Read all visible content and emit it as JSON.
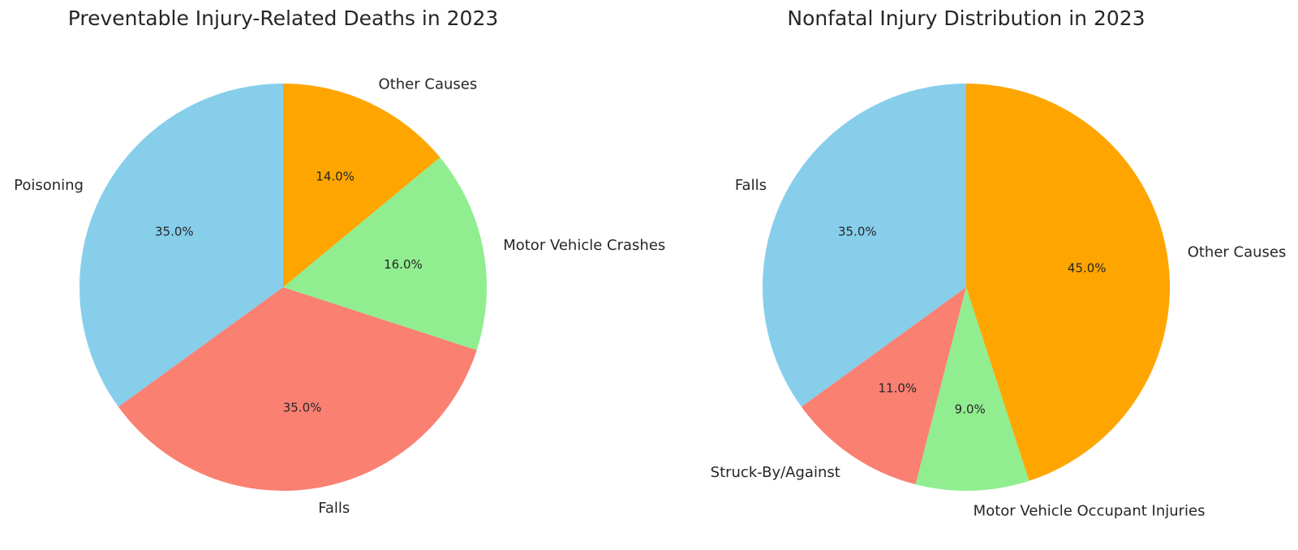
{
  "chart_data": [
    {
      "type": "pie",
      "title": "Preventable Injury-Related Deaths in 2023",
      "start_angle_deg": 90,
      "direction": "counterclockwise",
      "slices": [
        {
          "label": "Poisoning",
          "value": 35.0,
          "display": "35.0%",
          "color": "#87CEEB"
        },
        {
          "label": "Falls",
          "value": 35.0,
          "display": "35.0%",
          "color": "#FA8072"
        },
        {
          "label": "Motor Vehicle Crashes",
          "value": 16.0,
          "display": "16.0%",
          "color": "#90EE90"
        },
        {
          "label": "Other Causes",
          "value": 14.0,
          "display": "14.0%",
          "color": "#FFA500"
        }
      ]
    },
    {
      "type": "pie",
      "title": "Nonfatal Injury Distribution in 2023",
      "start_angle_deg": 90,
      "direction": "counterclockwise",
      "slices": [
        {
          "label": "Falls",
          "value": 35.0,
          "display": "35.0%",
          "color": "#87CEEB"
        },
        {
          "label": "Struck-By/Against",
          "value": 11.0,
          "display": "11.0%",
          "color": "#FA8072"
        },
        {
          "label": "Motor Vehicle Occupant Injuries",
          "value": 9.0,
          "display": "9.0%",
          "color": "#90EE90"
        },
        {
          "label": "Other Causes",
          "value": 45.0,
          "display": "45.0%",
          "color": "#FFA500"
        }
      ]
    }
  ]
}
